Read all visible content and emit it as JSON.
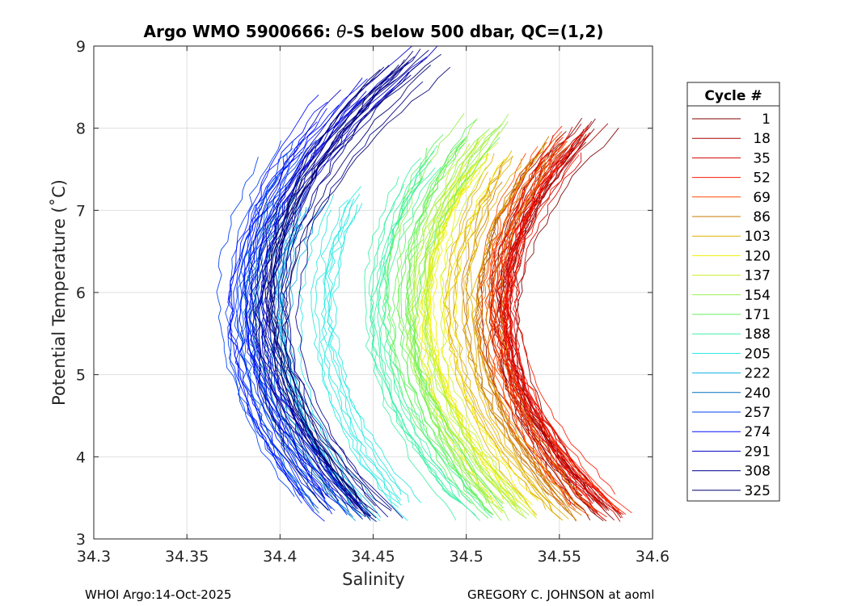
{
  "chart_data": {
    "type": "line",
    "title_prefix": "Argo WMO 5900666: ",
    "title_symbol": "θ",
    "title_suffix": "-S below 500 dbar,  QC=(1,2)",
    "xlabel": "Salinity",
    "ylabel": "Potential Temperature (˚C)",
    "xlim": [
      34.3,
      34.6
    ],
    "ylim": [
      3,
      9
    ],
    "xticks": [
      34.3,
      34.35,
      34.4,
      34.45,
      34.5,
      34.55,
      34.6
    ],
    "xtick_labels": [
      "34.3",
      "34.35",
      "34.4",
      "34.45",
      "34.5",
      "34.55",
      "34.6"
    ],
    "yticks": [
      3,
      4,
      5,
      6,
      7,
      8,
      9
    ],
    "ytick_labels": [
      "3",
      "4",
      "5",
      "6",
      "7",
      "8",
      "9"
    ],
    "grid": true,
    "legend": {
      "title": "Cycle #",
      "placement": "right-outside",
      "entries": [
        "1",
        "18",
        "35",
        "52",
        "69",
        "86",
        "103",
        "120",
        "137",
        "154",
        "171",
        "188",
        "205",
        "222",
        "240",
        "257",
        "274",
        "291",
        "308",
        "325"
      ],
      "colors": [
        "#800000",
        "#aa0000",
        "#d40000",
        "#ff1a00",
        "#ff4a00",
        "#c87800",
        "#e0b000",
        "#f0f000",
        "#c8f028",
        "#98f050",
        "#60f060",
        "#40f0a8",
        "#28e8e0",
        "#10b0e8",
        "#0070c0",
        "#0040f0",
        "#0010ff",
        "#0000c8",
        "#000090",
        "#000070"
      ]
    },
    "series_model": "Each colour band is a family of theta-S profiles for that range of cycles. Each profile follows a C-shaped curve: salinity = s_min + k*(theta - theta_min)^2 for theta between 3.2 and the listed theta_top, with theta_min near 5.8 C.",
    "series": [
      {
        "name": "1",
        "s_min": 34.517,
        "k": 0.0089,
        "theta_top": 7.95
      },
      {
        "name": "18",
        "s_min": 34.519,
        "k": 0.009,
        "theta_top": 7.9
      },
      {
        "name": "35",
        "s_min": 34.52,
        "k": 0.0088,
        "theta_top": 7.85
      },
      {
        "name": "52",
        "s_min": 34.522,
        "k": 0.0087,
        "theta_top": 7.8
      },
      {
        "name": "69",
        "s_min": 34.514,
        "k": 0.0086,
        "theta_top": 7.8
      },
      {
        "name": "86",
        "s_min": 34.507,
        "k": 0.0085,
        "theta_top": 7.7
      },
      {
        "name": "103",
        "s_min": 34.495,
        "k": 0.0084,
        "theta_top": 7.6
      },
      {
        "name": "120",
        "s_min": 34.484,
        "k": 0.0083,
        "theta_top": 7.5
      },
      {
        "name": "137",
        "s_min": 34.478,
        "k": 0.0083,
        "theta_top": 7.7
      },
      {
        "name": "154",
        "s_min": 34.47,
        "k": 0.0082,
        "theta_top": 8.1
      },
      {
        "name": "171",
        "s_min": 34.462,
        "k": 0.0081,
        "theta_top": 7.9
      },
      {
        "name": "188",
        "s_min": 34.448,
        "k": 0.0081,
        "theta_top": 7.5
      },
      {
        "name": "205",
        "s_min": 34.42,
        "k": 0.008,
        "theta_top": 7.2
      },
      {
        "name": "222",
        "s_min": 34.4,
        "k": 0.008,
        "theta_top": 7.1
      },
      {
        "name": "240",
        "s_min": 34.388,
        "k": 0.008,
        "theta_top": 7.4
      },
      {
        "name": "257",
        "s_min": 34.375,
        "k": 0.0079,
        "theta_top": 7.8
      },
      {
        "name": "274",
        "s_min": 34.38,
        "k": 0.008,
        "theta_top": 8.4
      },
      {
        "name": "291",
        "s_min": 34.39,
        "k": 0.0082,
        "theta_top": 8.7
      },
      {
        "name": "308",
        "s_min": 34.397,
        "k": 0.0083,
        "theta_top": 8.8
      },
      {
        "name": "325",
        "s_min": 34.395,
        "k": 0.0084,
        "theta_top": 8.85
      }
    ]
  },
  "footer": {
    "left": "WHOI Argo:14-Oct-2025",
    "right": "GREGORY C. JOHNSON at aoml"
  }
}
